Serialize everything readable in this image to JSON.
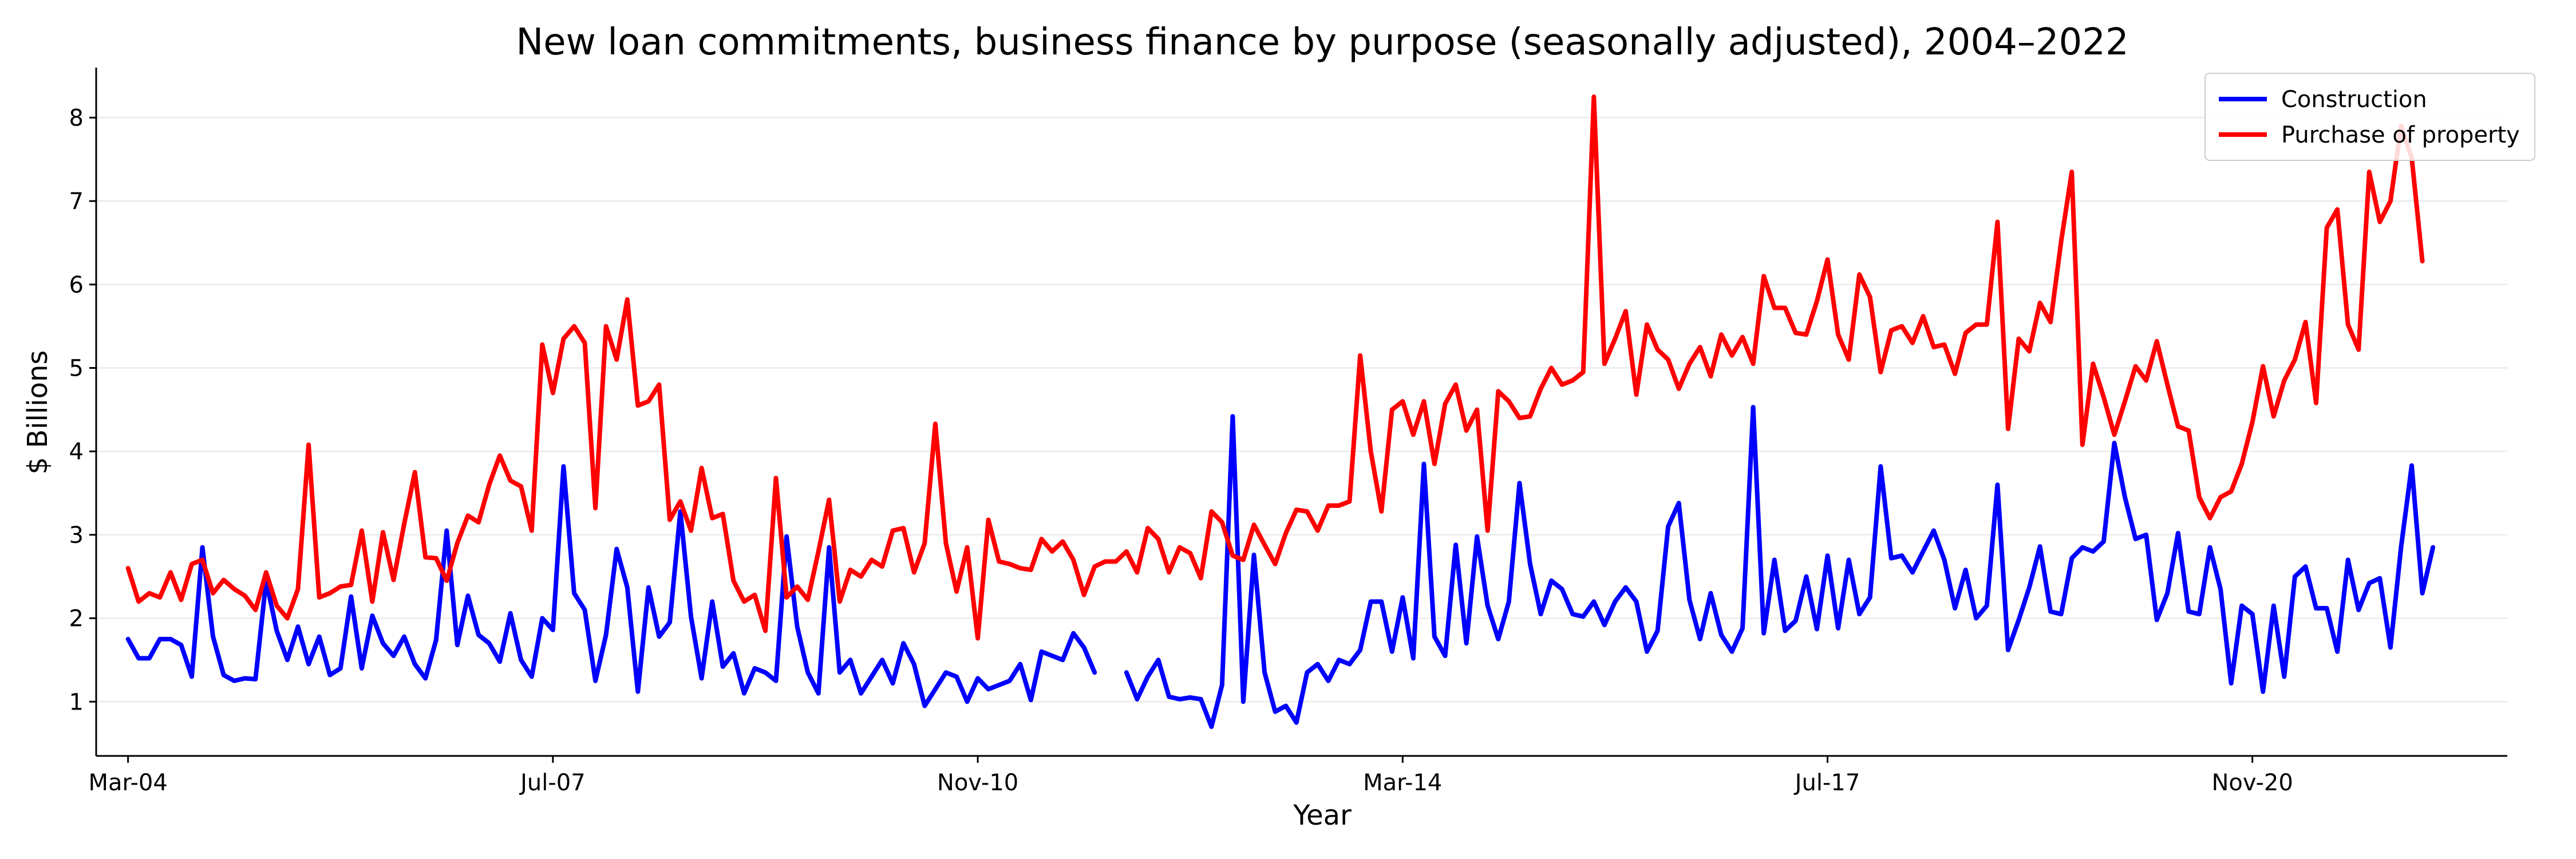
{
  "chart_data": {
    "type": "line",
    "title": "New loan commitments, business finance by purpose (seasonally adjusted), 2004–2022",
    "xlabel": "Year",
    "ylabel": "$ Billions",
    "x_start": "2004-03",
    "x_step": "quarter-month",
    "xlim": [
      "2003-12",
      "2022-11"
    ],
    "ylim": [
      0.35,
      8.6
    ],
    "yticks": [
      1,
      2,
      3,
      4,
      5,
      6,
      7,
      8
    ],
    "xtick_labels": [
      "Mar-04",
      "Jul-07",
      "Nov-10",
      "Mar-14",
      "Jul-17",
      "Nov-20"
    ],
    "xtick_dates": [
      "2004-03",
      "2007-07",
      "2010-11",
      "2014-03",
      "2017-07",
      "2020-11"
    ],
    "grid": "horizontal",
    "legend": "top-right",
    "series": [
      {
        "name": "Construction",
        "color": "#0000ff",
        "values": [
          1.75,
          1.52,
          1.52,
          1.75,
          1.75,
          1.68,
          1.3,
          2.85,
          1.78,
          1.32,
          1.25,
          1.28,
          1.27,
          2.45,
          1.85,
          1.5,
          1.9,
          1.45,
          1.78,
          1.32,
          1.4,
          2.26,
          1.4,
          2.03,
          1.7,
          1.55,
          1.78,
          1.45,
          1.28,
          1.74,
          3.05,
          1.68,
          2.27,
          1.8,
          1.7,
          1.48,
          2.06,
          1.5,
          1.3,
          2.0,
          1.86,
          3.82,
          2.3,
          2.1,
          1.25,
          1.8,
          2.83,
          2.37,
          1.12,
          2.37,
          1.78,
          1.95,
          3.28,
          2.02,
          1.28,
          2.2,
          1.42,
          1.58,
          1.1,
          1.4,
          1.35,
          1.25,
          2.98,
          1.9,
          1.35,
          1.1,
          2.85,
          1.35,
          1.5,
          1.1,
          1.3,
          1.5,
          1.22,
          1.7,
          1.45,
          0.95,
          1.15,
          1.35,
          1.3,
          1.0,
          1.28,
          1.15,
          1.2,
          1.25,
          1.45,
          1.02,
          1.6,
          1.55,
          1.5,
          1.82,
          1.65,
          1.35,
          null,
          null,
          1.35,
          1.03,
          1.3,
          1.5,
          1.06,
          1.03,
          1.05,
          1.03,
          0.7,
          1.2,
          4.42,
          1.0,
          2.76,
          1.35,
          0.88,
          0.95,
          0.75,
          1.35,
          1.45,
          1.25,
          1.5,
          1.45,
          1.62,
          2.2,
          2.2,
          1.6,
          2.25,
          1.52,
          3.85,
          1.78,
          1.55,
          2.88,
          1.7,
          2.98,
          2.15,
          1.75,
          2.2,
          3.62,
          2.65,
          2.05,
          2.45,
          2.35,
          2.05,
          2.02,
          2.2,
          1.92,
          2.2,
          2.37,
          2.2,
          1.6,
          1.85,
          3.1,
          3.38,
          2.22,
          1.75,
          2.3,
          1.8,
          1.6,
          1.88,
          4.53,
          1.82,
          2.7,
          1.85,
          1.97,
          2.5,
          1.87,
          2.75,
          1.88,
          2.7,
          2.05,
          2.25,
          3.82,
          2.72,
          2.75,
          2.55,
          2.8,
          3.05,
          2.7,
          2.12,
          2.58,
          2.0,
          2.15,
          3.6,
          1.62,
          1.98,
          2.37,
          2.86,
          2.08,
          2.05,
          2.72,
          2.85,
          2.8,
          2.92,
          4.1,
          3.45,
          2.95,
          3.0,
          1.98,
          2.3,
          3.02,
          2.08,
          2.05,
          2.85,
          2.35,
          1.22,
          2.15,
          2.05,
          1.12,
          2.15,
          1.3,
          2.5,
          2.62,
          2.12,
          2.12,
          1.6,
          2.7,
          2.1,
          2.42,
          2.48,
          1.65,
          2.85,
          3.83,
          2.3,
          2.85
        ]
      },
      {
        "name": "Purchase of property",
        "color": "#ff0000",
        "values": [
          2.6,
          2.2,
          2.3,
          2.25,
          2.55,
          2.22,
          2.65,
          2.7,
          2.3,
          2.46,
          2.35,
          2.27,
          2.1,
          2.55,
          2.15,
          2.0,
          2.35,
          4.08,
          2.25,
          2.3,
          2.38,
          2.4,
          3.05,
          2.2,
          3.03,
          2.46,
          3.13,
          3.75,
          2.73,
          2.72,
          2.45,
          2.9,
          3.23,
          3.15,
          3.6,
          3.95,
          3.65,
          3.58,
          3.05,
          5.28,
          4.7,
          5.35,
          5.5,
          5.3,
          3.32,
          5.5,
          5.1,
          5.82,
          4.55,
          4.6,
          4.8,
          3.18,
          3.4,
          3.05,
          3.8,
          3.2,
          3.25,
          2.45,
          2.2,
          2.28,
          1.85,
          3.68,
          2.25,
          2.38,
          2.22,
          2.8,
          3.42,
          2.2,
          2.58,
          2.5,
          2.7,
          2.62,
          3.05,
          3.08,
          2.55,
          2.9,
          4.33,
          2.9,
          2.32,
          2.85,
          1.76,
          3.18,
          2.68,
          2.65,
          2.6,
          2.58,
          2.95,
          2.8,
          2.92,
          2.7,
          2.28,
          2.62,
          2.68,
          2.68,
          2.8,
          2.55,
          3.08,
          2.95,
          2.55,
          2.85,
          2.78,
          2.48,
          3.28,
          3.15,
          2.75,
          2.7,
          3.12,
          2.88,
          2.65,
          3.02,
          3.3,
          3.28,
          3.05,
          3.35,
          3.35,
          3.4,
          5.15,
          4.0,
          3.28,
          4.5,
          4.6,
          4.2,
          4.6,
          3.85,
          4.57,
          4.8,
          4.25,
          4.5,
          3.05,
          4.72,
          4.6,
          4.4,
          4.42,
          4.75,
          5.0,
          4.8,
          4.85,
          4.95,
          8.25,
          5.05,
          5.35,
          5.68,
          4.68,
          5.52,
          5.22,
          5.1,
          4.75,
          5.05,
          5.25,
          4.9,
          5.4,
          5.15,
          5.37,
          5.05,
          6.1,
          5.72,
          5.72,
          5.42,
          5.4,
          5.8,
          6.3,
          5.4,
          5.1,
          6.12,
          5.85,
          4.95,
          5.45,
          5.5,
          5.3,
          5.62,
          5.25,
          5.28,
          4.93,
          5.42,
          5.52,
          5.52,
          6.75,
          4.27,
          5.35,
          5.2,
          5.78,
          5.55,
          6.52,
          7.35,
          4.08,
          5.05,
          4.65,
          4.2,
          4.6,
          5.02,
          4.85,
          5.32,
          4.8,
          4.3,
          4.25,
          3.45,
          3.2,
          3.45,
          3.52,
          3.85,
          4.35,
          5.02,
          4.42,
          4.85,
          5.1,
          5.55,
          4.58,
          6.68,
          6.9,
          5.52,
          5.22,
          7.35,
          6.75,
          7.0,
          7.9,
          7.52,
          6.28
        ]
      }
    ]
  }
}
